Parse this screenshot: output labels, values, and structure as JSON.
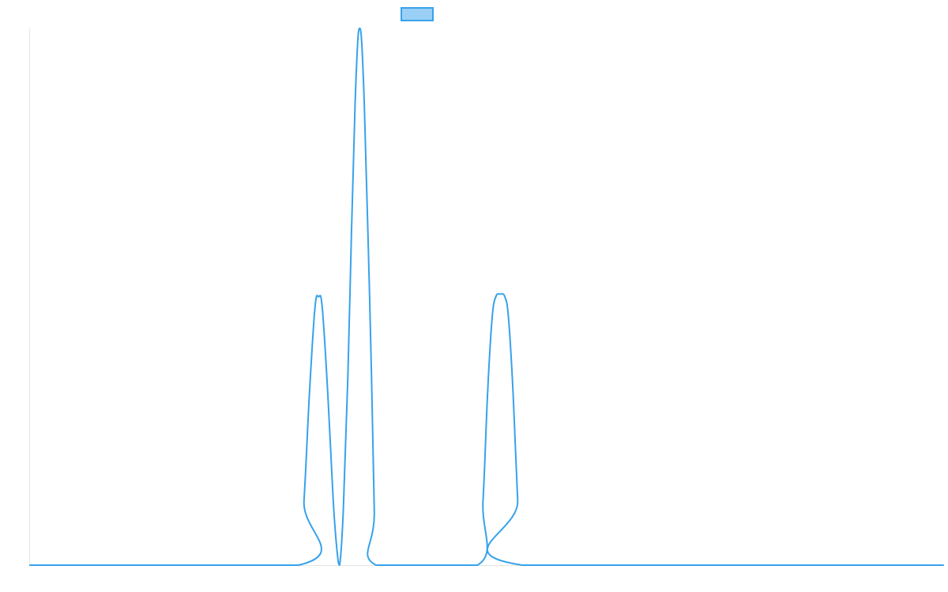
{
  "chart_data": {
    "type": "line",
    "title": "",
    "xlabel": "",
    "ylabel": "",
    "xlim": [
      0,
      100
    ],
    "ylim": [
      0,
      1
    ],
    "grid": false,
    "legend": "top",
    "series": [
      {
        "label": "",
        "color": "#36a2eb",
        "fill_color": "#9ad0f5",
        "points": [
          [
            0,
            0
          ],
          [
            29.4,
            0
          ],
          [
            30.0,
            0.12
          ],
          [
            30.6,
            0.32
          ],
          [
            31.2,
            0.48
          ],
          [
            31.6,
            0.5
          ],
          [
            32.0,
            0.48
          ],
          [
            32.6,
            0.32
          ],
          [
            33.2,
            0.12
          ],
          [
            33.6,
            0.03
          ],
          [
            33.9,
            0
          ],
          [
            34.3,
            0.1
          ],
          [
            34.8,
            0.35
          ],
          [
            35.2,
            0.62
          ],
          [
            35.6,
            0.86
          ],
          [
            35.9,
            0.98
          ],
          [
            36.1,
            1.0
          ],
          [
            36.3,
            0.98
          ],
          [
            36.6,
            0.86
          ],
          [
            37.0,
            0.62
          ],
          [
            37.4,
            0.35
          ],
          [
            37.7,
            0.1
          ],
          [
            37.9,
            0
          ],
          [
            49.0,
            0
          ],
          [
            49.6,
            0.12
          ],
          [
            50.1,
            0.32
          ],
          [
            50.6,
            0.46
          ],
          [
            51.0,
            0.5
          ],
          [
            51.5,
            0.505
          ],
          [
            52.0,
            0.5
          ],
          [
            52.4,
            0.46
          ],
          [
            52.9,
            0.32
          ],
          [
            53.4,
            0.12
          ],
          [
            53.9,
            0
          ],
          [
            100,
            0
          ]
        ]
      }
    ]
  }
}
